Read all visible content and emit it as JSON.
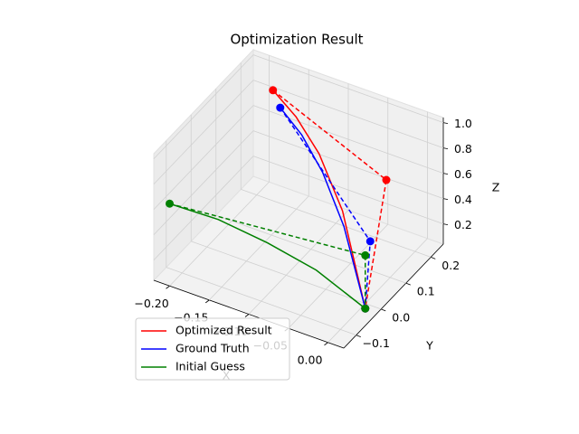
{
  "chart_data": {
    "type": "line3d",
    "title": "Optimization Result",
    "xlabel": "X",
    "ylabel": "Y",
    "zlabel": "Z",
    "xlim": [
      -0.22,
      0.02
    ],
    "ylim": [
      -0.15,
      0.25
    ],
    "zlim": [
      0.04,
      1.04
    ],
    "xticks": [
      {
        "value": -0.2,
        "label": "−0.20"
      },
      {
        "value": -0.15,
        "label": "−0.15"
      },
      {
        "value": -0.1,
        "label": "−0.10"
      },
      {
        "value": -0.05,
        "label": "−0.05"
      },
      {
        "value": 0,
        "label": "0.00"
      }
    ],
    "yticks": [
      {
        "value": -0.1,
        "label": "−0.1"
      },
      {
        "value": 0,
        "label": "0.0"
      },
      0.1,
      0.2
    ],
    "zticks": [
      0.2,
      0.4,
      0.6,
      0.8,
      {
        "value": 1,
        "label": "1.0"
      }
    ],
    "grid": true,
    "legend_loc": "lower left",
    "series": [
      {
        "name": "Optimized Result",
        "color": "#ff0000",
        "curve": {
          "x": [
            -0.165,
            -0.124,
            -0.0825,
            -0.041,
            0
          ],
          "y": [
            0.154,
            0.116,
            0.077,
            0.039,
            0
          ],
          "z": [
            1.04,
            1.0,
            0.88,
            0.6,
            0
          ]
        },
        "waypoints": {
          "x": [
            -0.165,
            -0.0105,
            0
          ],
          "y": [
            0.154,
            0.118,
            0
          ],
          "z": [
            1.04,
            0.75,
            0
          ]
        }
      },
      {
        "name": "Ground Truth",
        "color": "#0000ff",
        "curve": {
          "x": [
            -0.147,
            -0.11,
            -0.0735,
            -0.037,
            0
          ],
          "y": [
            0.126,
            0.095,
            0.063,
            0.032,
            0
          ],
          "z": [
            1.0,
            0.93,
            0.78,
            0.5,
            0
          ]
        },
        "waypoints": {
          "x": [
            -0.147,
            0,
            0
          ],
          "y": [
            0.126,
            0.02,
            0
          ],
          "z": [
            1.0,
            0.49,
            0
          ]
        }
      },
      {
        "name": "Initial Guess",
        "color": "#008000",
        "curve": {
          "x": [
            -0.2,
            -0.15,
            -0.1,
            -0.05,
            0
          ],
          "y": [
            -0.15,
            -0.113,
            -0.075,
            -0.038,
            0
          ],
          "z": [
            0.69,
            0.6,
            0.45,
            0.27,
            0
          ]
        },
        "waypoints": {
          "x": [
            -0.2,
            0,
            0
          ],
          "y": [
            -0.15,
            0,
            0
          ],
          "z": [
            0.69,
            0.42,
            0
          ]
        }
      }
    ]
  }
}
